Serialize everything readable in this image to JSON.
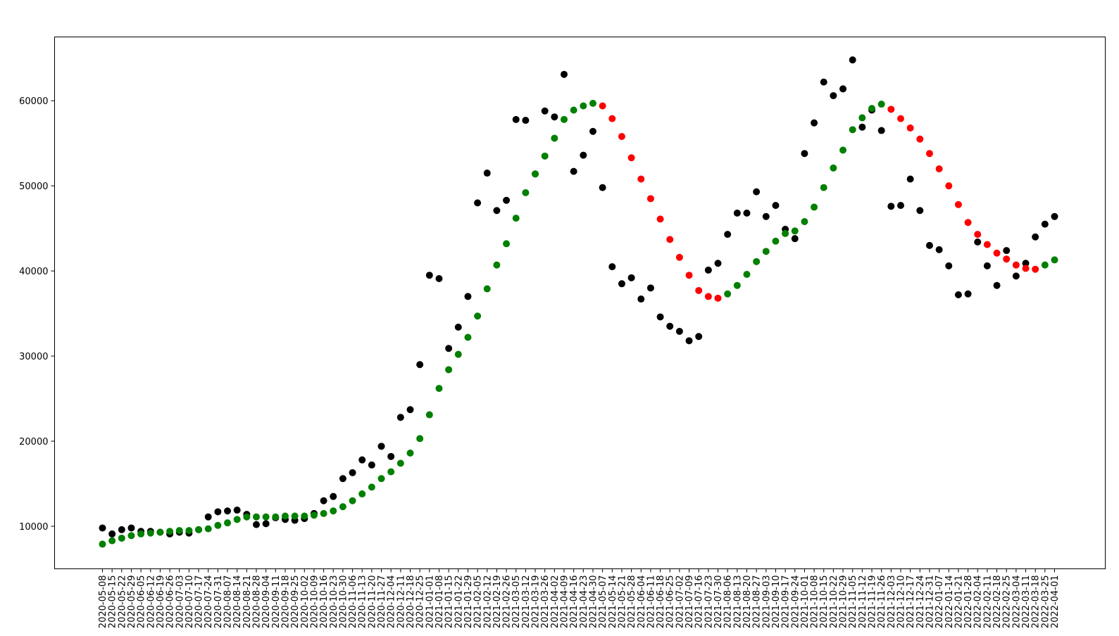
{
  "chart_data": {
    "type": "scatter",
    "title": "",
    "xlabel": "",
    "ylabel": "",
    "ylim": [
      5000,
      67500
    ],
    "yticks": [
      10000,
      20000,
      30000,
      40000,
      50000,
      60000
    ],
    "ytick_labels": [
      "10000",
      "20000",
      "30000",
      "40000",
      "50000",
      "60000"
    ],
    "grid": false,
    "colors": {
      "observed": "#000000",
      "trend_up": "#008000",
      "trend_down": "#ff0000",
      "axes": "#000000",
      "background": "#ffffff"
    },
    "dates": [
      "2020-05-08",
      "2020-05-15",
      "2020-05-22",
      "2020-05-29",
      "2020-06-05",
      "2020-06-12",
      "2020-06-19",
      "2020-06-26",
      "2020-07-03",
      "2020-07-10",
      "2020-07-17",
      "2020-07-24",
      "2020-07-31",
      "2020-08-07",
      "2020-08-14",
      "2020-08-21",
      "2020-08-28",
      "2020-09-04",
      "2020-09-11",
      "2020-09-18",
      "2020-09-25",
      "2020-10-02",
      "2020-10-09",
      "2020-10-16",
      "2020-10-23",
      "2020-10-30",
      "2020-11-06",
      "2020-11-13",
      "2020-11-20",
      "2020-11-27",
      "2020-12-04",
      "2020-12-11",
      "2020-12-18",
      "2020-12-25",
      "2021-01-01",
      "2021-01-08",
      "2021-01-15",
      "2021-01-22",
      "2021-01-29",
      "2021-02-05",
      "2021-02-12",
      "2021-02-19",
      "2021-02-26",
      "2021-03-05",
      "2021-03-12",
      "2021-03-19",
      "2021-03-26",
      "2021-04-02",
      "2021-04-09",
      "2021-04-16",
      "2021-04-23",
      "2021-04-30",
      "2021-05-07",
      "2021-05-14",
      "2021-05-21",
      "2021-05-28",
      "2021-06-04",
      "2021-06-11",
      "2021-06-18",
      "2021-06-25",
      "2021-07-02",
      "2021-07-09",
      "2021-07-16",
      "2021-07-23",
      "2021-07-30",
      "2021-08-06",
      "2021-08-13",
      "2021-08-20",
      "2021-08-27",
      "2021-09-03",
      "2021-09-10",
      "2021-09-17",
      "2021-09-24",
      "2021-10-01",
      "2021-10-08",
      "2021-10-15",
      "2021-10-22",
      "2021-10-29",
      "2021-11-05",
      "2021-11-12",
      "2021-11-19",
      "2021-11-26",
      "2021-12-03",
      "2021-12-10",
      "2021-12-17",
      "2021-12-24",
      "2021-12-31",
      "2022-01-07",
      "2022-01-14",
      "2022-01-21",
      "2022-01-28",
      "2022-02-04",
      "2022-02-11",
      "2022-02-18",
      "2022-02-25",
      "2022-03-04",
      "2022-03-11",
      "2022-03-18",
      "2022-03-25",
      "2022-04-01"
    ],
    "xtick_labels": [
      "2020-05-08",
      "2020-05-15",
      "2020-05-22",
      "2020-05-29",
      "2020-06-05",
      "2020-06-12",
      "2020-06-19",
      "2020-06-26",
      "2020-07-03",
      "2020-07-10",
      "2020-07-17",
      "2020-07-24",
      "2020-07-31",
      "2020-08-07",
      "2020-08-14",
      "2020-08-21",
      "2020-08-28",
      "2020-09-04",
      "2020-09-11",
      "2020-09-18",
      "2020-09-25",
      "2020-10-02",
      "2020-10-09",
      "2020-10-16",
      "2020-10-23",
      "2020-10-30",
      "2020-11-06",
      "2020-11-13",
      "2020-11-20",
      "2020-11-27",
      "2020-12-04",
      "2020-12-11",
      "2020-12-18",
      "2020-12-25",
      "2021-01-01",
      "2021-01-08",
      "2021-01-15",
      "2021-01-22",
      "2021-01-29",
      "2021-02-05",
      "2021-02-12",
      "2021-02-19",
      "2021-02-26",
      "2021-03-05",
      "2021-03-12",
      "2021-03-19",
      "2021-03-26",
      "2021-04-02",
      "2021-04-09",
      "2021-04-16",
      "2021-04-23",
      "2021-04-30",
      "2021-05-07",
      "2021-05-14",
      "2021-05-21",
      "2021-05-28",
      "2021-06-04",
      "2021-06-11",
      "2021-06-18",
      "2021-06-25",
      "2021-07-02",
      "2021-07-09",
      "2021-07-16",
      "2021-07-23",
      "2021-07-30",
      "2021-08-06",
      "2021-08-13",
      "2021-08-20",
      "2021-08-27",
      "2021-09-03",
      "2021-09-10",
      "2021-09-17",
      "2021-09-24",
      "2021-10-01",
      "2021-10-08",
      "2021-10-15",
      "2021-10-22",
      "2021-10-29",
      "2021-11-05",
      "2021-11-12",
      "2021-11-19",
      "2021-11-26",
      "2021-12-03",
      "2021-12-10",
      "2021-12-17",
      "2021-12-24",
      "2021-12-31",
      "2022-01-07",
      "2022-01-14",
      "2022-01-21",
      "2022-01-28",
      "2022-02-04",
      "2022-02-11",
      "2022-02-18",
      "2022-02-25",
      "2022-03-04",
      "2022-03-11",
      "2022-03-18",
      "2022-03-25",
      "2022-04-01"
    ],
    "series": [
      {
        "color": "#000000",
        "values": [
          9800,
          9100,
          9600,
          9800,
          9400,
          9400,
          9300,
          9100,
          9300,
          9200,
          9600,
          11100,
          11700,
          11800,
          11900,
          11400,
          10200,
          10300,
          11000,
          10800,
          10700,
          10900,
          11500,
          13000,
          13500,
          15600,
          16300,
          17800,
          17200,
          19400,
          18200,
          22800,
          23700,
          29000,
          39500,
          39100,
          30900,
          33400,
          37000,
          48000,
          51500,
          47100,
          48300,
          57800,
          57700,
          51400,
          58800,
          58100,
          63100,
          51700,
          53600,
          56400,
          49800,
          40500,
          38500,
          39200,
          36700,
          38000,
          34600,
          33500,
          32900,
          31800,
          32300,
          40100,
          40900,
          44300,
          46800,
          46800,
          49300,
          46400,
          47700,
          44900,
          43800,
          53800,
          57400,
          62200,
          60600,
          61400,
          64800,
          56900,
          58900,
          56500,
          47600,
          47700,
          50800,
          47100,
          43000,
          42500,
          40600,
          37200,
          37300,
          43400,
          40600,
          38300,
          42400,
          39400,
          40900,
          44000,
          45500,
          46400
        ]
      },
      {
        "color_rule": "green where trend rises, red where trend falls",
        "values": [
          7900,
          8300,
          8600,
          8900,
          9100,
          9200,
          9300,
          9400,
          9500,
          9500,
          9600,
          9700,
          10100,
          10400,
          10800,
          11100,
          11100,
          11100,
          11100,
          11200,
          11200,
          11200,
          11300,
          11500,
          11800,
          12300,
          13000,
          13800,
          14600,
          15600,
          16400,
          17400,
          18600,
          20300,
          23100,
          26200,
          28400,
          30200,
          32200,
          34700,
          37900,
          40700,
          43200,
          46200,
          49200,
          51400,
          53500,
          55600,
          57800,
          58900,
          59400,
          59700,
          59400,
          57900,
          55800,
          53300,
          50800,
          48500,
          46100,
          43700,
          41600,
          39500,
          37700,
          37000,
          36800,
          37300,
          38300,
          39600,
          41100,
          42300,
          43500,
          44400,
          44700,
          45800,
          47500,
          49800,
          52100,
          54200,
          56600,
          58000,
          59100,
          59600,
          59000,
          57900,
          56800,
          55500,
          53800,
          52000,
          50000,
          47800,
          45700,
          44300,
          43100,
          42100,
          41400,
          40700,
          40300,
          40200,
          40700,
          41300
        ]
      }
    ]
  }
}
